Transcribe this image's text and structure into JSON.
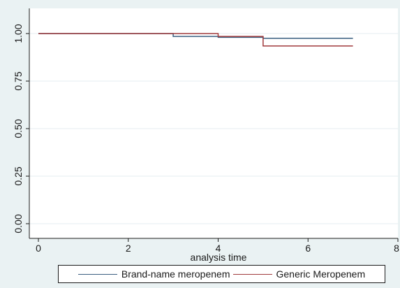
{
  "chart_data": {
    "type": "line",
    "step": true,
    "title": "",
    "xlabel": "analysis time",
    "ylabel": "",
    "xlim": [
      0,
      8
    ],
    "ylim": [
      0,
      1
    ],
    "x_ticks": [
      "0",
      "2",
      "4",
      "6",
      "8"
    ],
    "y_ticks": [
      "0.00",
      "0.25",
      "0.50",
      "0.75",
      "1.00"
    ],
    "grid": true,
    "legend_position": "bottom",
    "series": [
      {
        "name": "Brand-name meropenem",
        "color": "#3a5f80",
        "points": [
          [
            0,
            1.0
          ],
          [
            3,
            1.0
          ],
          [
            3,
            0.985
          ],
          [
            4,
            0.985
          ],
          [
            4,
            0.98
          ],
          [
            5,
            0.98
          ],
          [
            5,
            0.975
          ],
          [
            7,
            0.975
          ]
        ]
      },
      {
        "name": "Generic Meropenem",
        "color": "#a03a3c",
        "points": [
          [
            0,
            1.0
          ],
          [
            4,
            1.0
          ],
          [
            4,
            0.985
          ],
          [
            5,
            0.985
          ],
          [
            5,
            0.935
          ],
          [
            7,
            0.935
          ]
        ]
      }
    ]
  }
}
